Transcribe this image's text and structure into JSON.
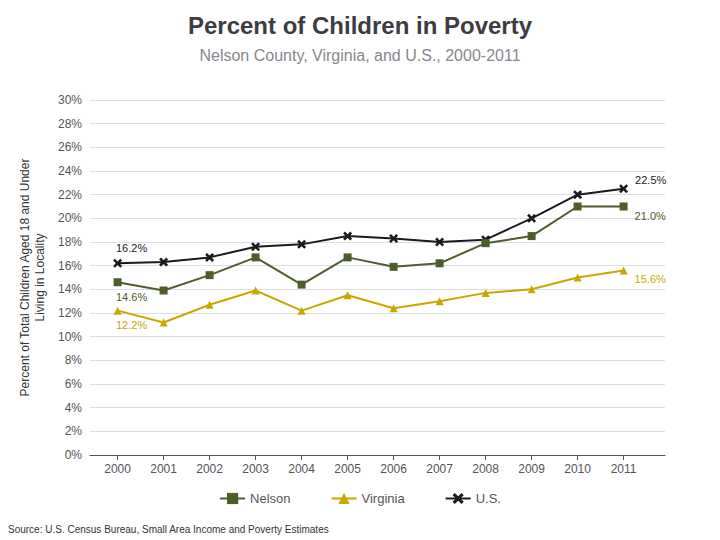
{
  "chart_data": {
    "type": "line",
    "title": "Percent of Children in Poverty",
    "subtitle": "Nelson County, Virginia, and U.S., 2000-2011",
    "source": "Source: U.S. Census Bureau, Small Area Income and Poverty Estimates",
    "x": [
      2000,
      2001,
      2002,
      2003,
      2004,
      2005,
      2006,
      2007,
      2008,
      2009,
      2010,
      2011
    ],
    "xlim": [
      1999.4,
      2011.9
    ],
    "xticks": [
      2000,
      2001,
      2002,
      2003,
      2004,
      2005,
      2006,
      2007,
      2008,
      2009,
      2010,
      2011
    ],
    "ylim": [
      0,
      30
    ],
    "yticks": [
      {
        "value": 0,
        "label": "0%"
      },
      {
        "value": 2,
        "label": "2%"
      },
      {
        "value": 4,
        "label": "4%"
      },
      {
        "value": 6,
        "label": "6%"
      },
      {
        "value": 8,
        "label": "8%"
      },
      {
        "value": 10,
        "label": "10%"
      },
      {
        "value": 12,
        "label": "12%"
      },
      {
        "value": 14,
        "label": "14%"
      },
      {
        "value": 16,
        "label": "16%"
      },
      {
        "value": 18,
        "label": "18%"
      },
      {
        "value": 20,
        "label": "20%"
      },
      {
        "value": 22,
        "label": "22%"
      },
      {
        "value": 24,
        "label": "24%"
      },
      {
        "value": 26,
        "label": "26%"
      },
      {
        "value": 28,
        "label": "28%"
      },
      {
        "value": 30,
        "label": "30%"
      }
    ],
    "ylabel": "Percent of Total Children Aged 18 and Under\nLiving in Locality",
    "grid": true,
    "legend": "bottom",
    "series": [
      {
        "name": "U.S.",
        "color": "#1a1a1a",
        "marker": "x",
        "values": [
          16.2,
          16.3,
          16.7,
          17.6,
          17.8,
          18.5,
          18.3,
          18.0,
          18.2,
          20.0,
          22.0,
          22.5
        ]
      },
      {
        "name": "Nelson",
        "color": "#4d5e2a",
        "marker": "square",
        "values": [
          14.6,
          13.9,
          15.2,
          16.7,
          14.4,
          16.7,
          15.9,
          16.2,
          17.9,
          18.5,
          21.0,
          21.0
        ]
      },
      {
        "name": "Virginia",
        "color": "#c8a800",
        "marker": "triangle",
        "values": [
          12.2,
          11.2,
          12.7,
          13.9,
          12.2,
          13.5,
          12.4,
          13.0,
          13.7,
          14.0,
          15.0,
          15.6
        ]
      }
    ],
    "annotations": [
      {
        "text": "16.2%",
        "x": 2000,
        "y": 16.2,
        "series": "U.S."
      },
      {
        "text": "14.6%",
        "x": 2000,
        "y": 14.6,
        "series": "Nelson"
      },
      {
        "text": "12.2%",
        "x": 2000,
        "y": 12.2,
        "series": "Virginia"
      },
      {
        "text": "22.5%",
        "x": 2011,
        "y": 22.5,
        "series": "U.S."
      },
      {
        "text": "21.0%",
        "x": 2011,
        "y": 21.0,
        "series": "Nelson"
      },
      {
        "text": "15.6%",
        "x": 2011,
        "y": 15.6,
        "series": "Virginia"
      }
    ]
  }
}
